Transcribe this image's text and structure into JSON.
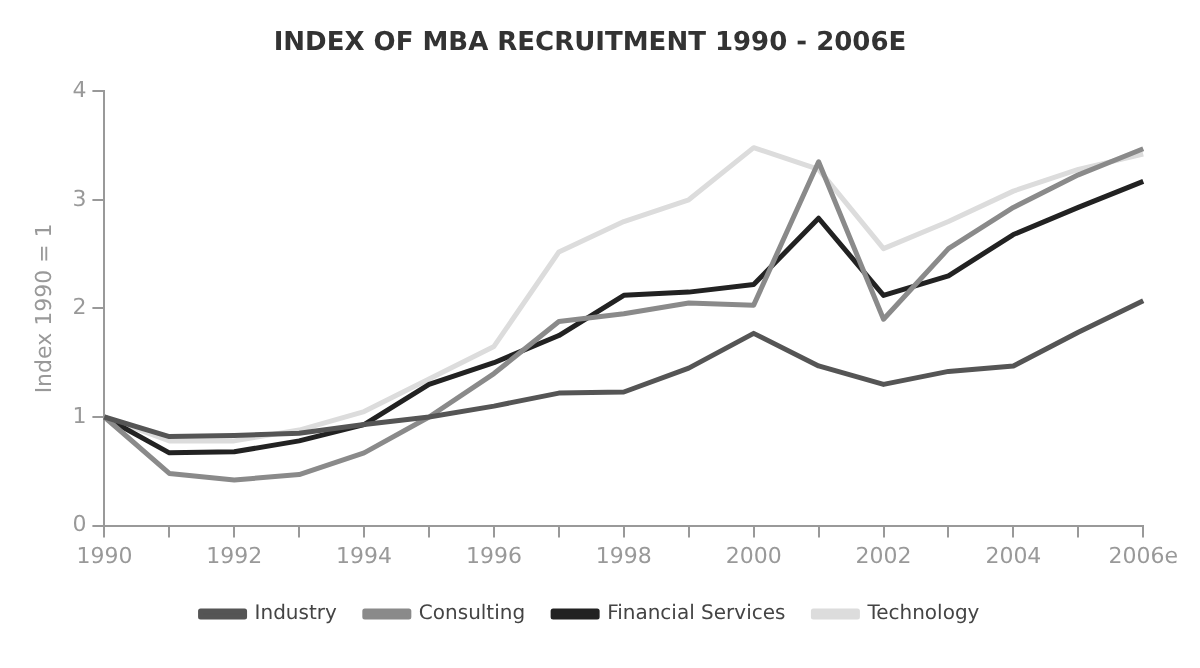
{
  "chart_data": {
    "type": "line",
    "title": "INDEX OF MBA RECRUITMENT 1990 - 2006E",
    "ylabel": "Index 1990 = 1",
    "categories": [
      "1990",
      null,
      "1992",
      null,
      "1994",
      null,
      "1996",
      null,
      "1998",
      null,
      "2000",
      null,
      "2002",
      null,
      "2004",
      null,
      "2006e"
    ],
    "series": [
      {
        "name": "Industry",
        "color": "#555555",
        "values": [
          1.0,
          0.82,
          0.83,
          0.85,
          0.93,
          1.0,
          1.1,
          1.22,
          1.23,
          1.45,
          1.77,
          1.47,
          1.3,
          1.42,
          1.47,
          1.78,
          2.07
        ]
      },
      {
        "name": "Consulting",
        "color": "#8a8a8a",
        "values": [
          1.0,
          0.48,
          0.42,
          0.47,
          0.67,
          1.0,
          1.4,
          1.88,
          1.95,
          2.05,
          2.03,
          3.35,
          1.9,
          2.55,
          2.93,
          3.23,
          3.47
        ]
      },
      {
        "name": "Financial Services",
        "color": "#222222",
        "values": [
          1.0,
          0.67,
          0.68,
          0.78,
          0.93,
          1.3,
          1.5,
          1.75,
          2.12,
          2.15,
          2.22,
          2.83,
          2.12,
          2.3,
          2.68,
          2.93,
          3.17
        ]
      },
      {
        "name": "Technology",
        "color": "#dcdcdc",
        "values": [
          1.0,
          0.78,
          0.78,
          0.88,
          1.05,
          1.35,
          1.65,
          2.52,
          2.8,
          3.0,
          3.48,
          3.28,
          2.55,
          2.8,
          3.08,
          3.28,
          3.42
        ]
      }
    ],
    "ylim": [
      0,
      4
    ],
    "yticks": [
      0,
      1,
      2,
      3,
      4
    ],
    "grid": false,
    "legend": "bottom",
    "marker": "none",
    "line_style": "solid"
  }
}
